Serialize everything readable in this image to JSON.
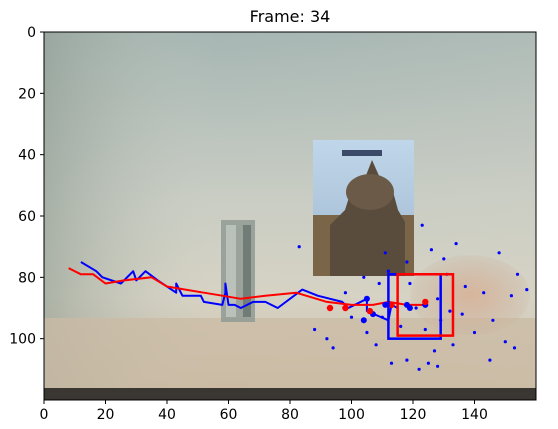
{
  "title": "Frame: 34",
  "chart_data": {
    "type": "scatter",
    "title": "Frame: 34",
    "xlabel": "",
    "ylabel": "",
    "xlim": [
      0,
      160
    ],
    "ylim": [
      120,
      0
    ],
    "y_inverted": true,
    "grid": false,
    "background": "video frame: wall with poster of a domed building, bottle, and hand on the right",
    "xticks": [
      0,
      20,
      40,
      60,
      80,
      100,
      120,
      140
    ],
    "yticks": [
      0,
      20,
      40,
      60,
      80,
      100
    ],
    "colors": {
      "blue": "#0000ff",
      "red": "#ff0000"
    },
    "series": [
      {
        "kind": "trajectory",
        "color": "#0000ff",
        "points": [
          [
            12,
            75
          ],
          [
            17,
            78
          ],
          [
            19,
            80
          ],
          [
            25,
            82
          ],
          [
            29,
            78
          ],
          [
            30,
            81
          ],
          [
            33,
            78
          ],
          [
            37,
            81
          ],
          [
            43,
            85
          ],
          [
            43,
            82
          ],
          [
            45,
            86
          ],
          [
            51,
            86
          ],
          [
            52,
            88
          ],
          [
            58,
            89
          ],
          [
            59,
            85
          ],
          [
            59,
            82
          ],
          [
            60,
            89
          ],
          [
            61,
            89
          ],
          [
            62,
            89
          ],
          [
            64,
            90
          ],
          [
            68,
            88
          ],
          [
            72,
            88
          ],
          [
            76,
            90
          ],
          [
            84,
            84
          ],
          [
            89,
            86
          ],
          [
            97,
            88
          ],
          [
            99,
            90
          ],
          [
            105,
            87
          ],
          [
            105,
            91
          ],
          [
            112,
            94
          ],
          [
            113,
            89
          ],
          [
            115,
            90
          ]
        ]
      },
      {
        "kind": "trajectory",
        "color": "#ff0000",
        "points": [
          [
            8,
            77
          ],
          [
            12,
            79
          ],
          [
            16,
            79
          ],
          [
            20,
            82
          ],
          [
            26,
            81
          ],
          [
            35,
            80
          ],
          [
            40,
            83
          ],
          [
            46,
            84
          ],
          [
            52,
            85
          ],
          [
            58,
            86
          ],
          [
            64,
            87
          ],
          [
            72,
            86
          ],
          [
            82,
            85
          ],
          [
            92,
            88
          ],
          [
            100,
            89
          ],
          [
            107,
            89
          ],
          [
            112,
            88
          ],
          [
            118,
            89
          ],
          [
            124,
            89
          ]
        ]
      },
      {
        "kind": "points",
        "color": "#0000ff",
        "points": [
          [
            104,
            94
          ],
          [
            105,
            87
          ],
          [
            107,
            92
          ],
          [
            111,
            89
          ],
          [
            118,
            89
          ],
          [
            119,
            90
          ],
          [
            124,
            89
          ]
        ]
      },
      {
        "kind": "points",
        "color": "#ff0000",
        "points": [
          [
            93,
            90
          ],
          [
            98,
            90
          ],
          [
            106,
            91
          ],
          [
            113,
            89
          ],
          [
            124,
            88
          ]
        ]
      },
      {
        "kind": "particles",
        "color": "#0000ff",
        "points": [
          [
            83,
            70
          ],
          [
            88,
            97
          ],
          [
            92,
            100
          ],
          [
            94,
            103
          ],
          [
            98,
            85
          ],
          [
            100,
            93
          ],
          [
            104,
            80
          ],
          [
            105,
            98
          ],
          [
            108,
            102
          ],
          [
            110,
            93
          ],
          [
            111,
            72
          ],
          [
            112,
            78
          ],
          [
            113,
            108
          ],
          [
            116,
            96
          ],
          [
            118,
            75
          ],
          [
            119,
            82
          ],
          [
            121,
            90
          ],
          [
            122,
            110
          ],
          [
            123,
            63
          ],
          [
            124,
            97
          ],
          [
            125,
            108
          ],
          [
            126,
            71
          ],
          [
            127,
            104
          ],
          [
            128,
            87
          ],
          [
            129,
            94
          ],
          [
            130,
            74
          ],
          [
            131,
            79
          ],
          [
            132,
            91
          ],
          [
            133,
            102
          ],
          [
            134,
            69
          ],
          [
            136,
            92
          ],
          [
            137,
            83
          ],
          [
            140,
            98
          ],
          [
            143,
            85
          ],
          [
            145,
            107
          ],
          [
            146,
            94
          ],
          [
            148,
            72
          ],
          [
            150,
            101
          ],
          [
            152,
            86
          ],
          [
            153,
            103
          ],
          [
            154,
            79
          ],
          [
            157,
            84
          ],
          [
            112,
            78
          ],
          [
            109,
            82
          ],
          [
            128,
            109
          ],
          [
            118,
            107
          ]
        ]
      }
    ],
    "boxes": [
      {
        "color": "#0000ff",
        "x0": 112,
        "y0": 79,
        "x1": 129,
        "y1": 100
      },
      {
        "color": "#ff0000",
        "x0": 115,
        "y0": 79,
        "x1": 133,
        "y1": 99
      }
    ]
  }
}
